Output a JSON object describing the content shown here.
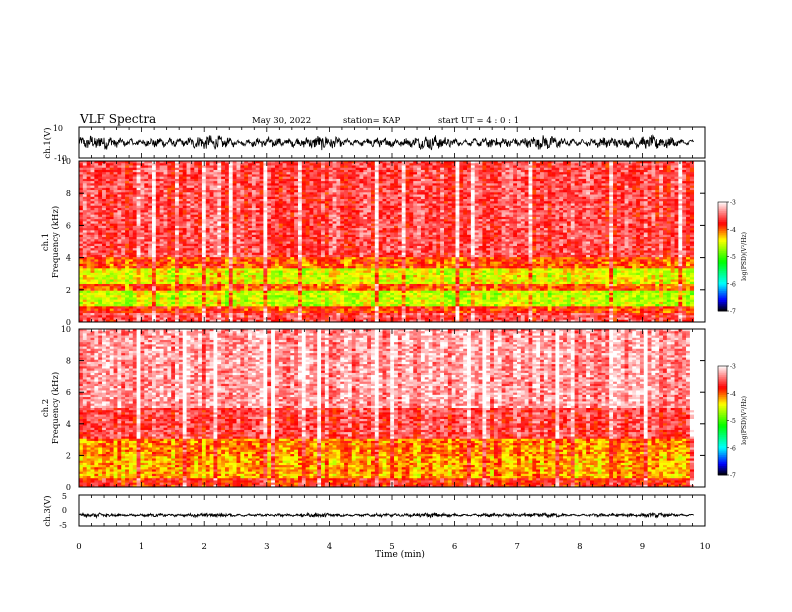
{
  "header": {
    "title": "VLF Spectra",
    "date": "May 30, 2022",
    "station": "station= KAP",
    "start": "start  UT  =   4 : 0  : 1"
  },
  "colorbar": {
    "label": "log(PSD)(V²/Hz)",
    "ticks": [
      "-3",
      "-4",
      "-5",
      "-6",
      "-7"
    ],
    "colors": [
      "#000000",
      "#0000ff",
      "#00ffff",
      "#00ff00",
      "#ffff00",
      "#ff0000",
      "#ffffff"
    ]
  },
  "chart_data": [
    {
      "type": "line",
      "name": "ch1-waveform",
      "ylabel": "ch.1(V)",
      "ylim": [
        -10,
        10
      ],
      "yticks": [
        "10",
        "-10"
      ],
      "xlim": [
        0,
        10
      ],
      "description_values": {
        "center": 0,
        "amplitude_typical": 4
      }
    },
    {
      "type": "heatmap",
      "name": "ch1-spectrogram",
      "ylabel_top": "ch.1",
      "ylabel": "Frequency (kHz)",
      "ylim": [
        0,
        10
      ],
      "yticks": [
        "0",
        "2",
        "4",
        "6",
        "8",
        "10"
      ],
      "xlim": [
        0,
        10
      ],
      "zlim": [
        -7,
        -3
      ],
      "band_profile": [
        {
          "f_low": 0,
          "f_high": 0.5,
          "level": -3.6
        },
        {
          "f_low": 0.5,
          "f_high": 1.0,
          "level": -3.9
        },
        {
          "f_low": 1.0,
          "f_high": 2.0,
          "level": -4.6
        },
        {
          "f_low": 2.0,
          "f_high": 2.4,
          "level": -4.0
        },
        {
          "f_low": 2.4,
          "f_high": 3.4,
          "level": -4.5
        },
        {
          "f_low": 3.4,
          "f_high": 4.0,
          "level": -4.0
        },
        {
          "f_low": 4.0,
          "f_high": 10,
          "level": -3.6
        }
      ]
    },
    {
      "type": "heatmap",
      "name": "ch2-spectrogram",
      "ylabel_top": "ch.2",
      "ylabel": "Frequency (kHz)",
      "ylim": [
        0,
        10
      ],
      "yticks": [
        "0",
        "2",
        "4",
        "6",
        "8",
        "10"
      ],
      "xlim": [
        0,
        10
      ],
      "zlim": [
        -7,
        -3
      ],
      "band_profile": [
        {
          "f_low": 0,
          "f_high": 0.5,
          "level": -3.8
        },
        {
          "f_low": 0.5,
          "f_high": 2.0,
          "level": -4.2
        },
        {
          "f_low": 2.0,
          "f_high": 3.0,
          "level": -4.1
        },
        {
          "f_low": 3.0,
          "f_high": 5.0,
          "level": -3.6
        },
        {
          "f_low": 5.0,
          "f_high": 10,
          "level": -3.3
        }
      ]
    },
    {
      "type": "line",
      "name": "ch3-waveform",
      "ylabel": "ch.3(V)",
      "ylim": [
        -5,
        5
      ],
      "yticks": [
        "5",
        "0",
        "-5"
      ],
      "xlim": [
        0,
        10
      ],
      "description_values": {
        "center": -1.5,
        "amplitude_typical": 0.6
      }
    }
  ],
  "xaxis": {
    "label": "Time  (min)",
    "ticks": [
      "0",
      "1",
      "2",
      "3",
      "4",
      "5",
      "6",
      "7",
      "8",
      "9",
      "10"
    ],
    "data_end": 9.82
  }
}
